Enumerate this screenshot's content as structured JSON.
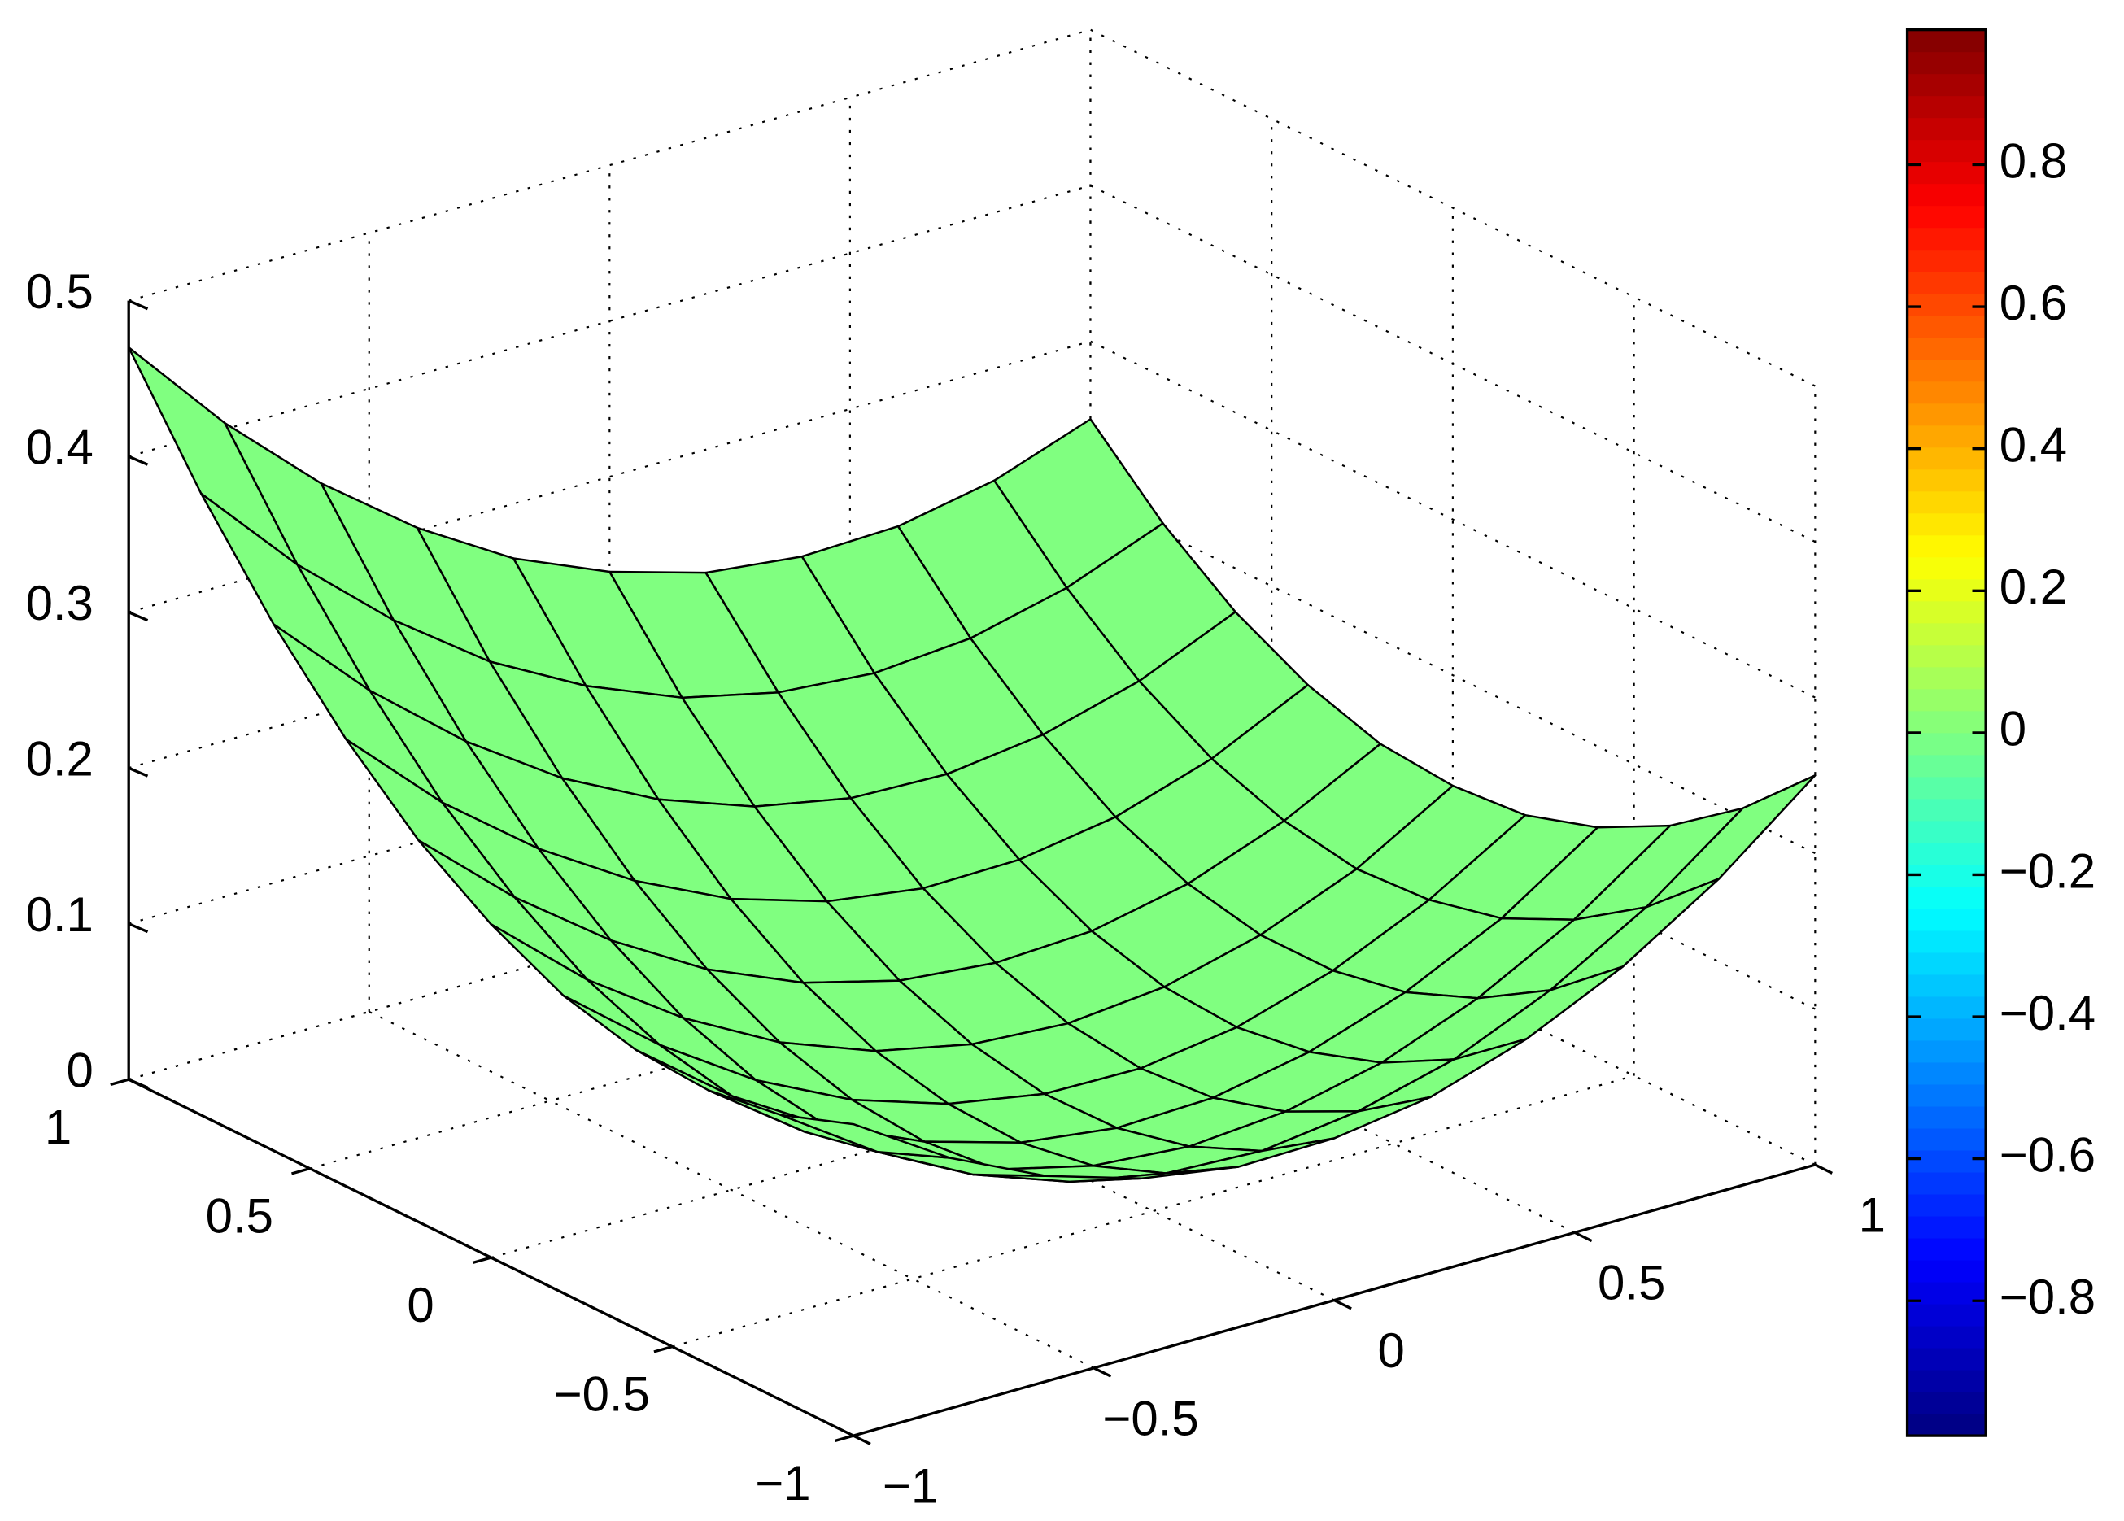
{
  "chart_data": {
    "type": "surface",
    "x": [
      -1,
      -0.8,
      -0.6,
      -0.4,
      -0.2,
      0,
      0.2,
      0.4,
      0.6,
      0.8,
      1
    ],
    "y": [
      -1,
      -0.8,
      -0.6,
      -0.4,
      -0.2,
      0,
      0.2,
      0.4,
      0.6,
      0.8,
      1
    ],
    "z": [
      [
        0.2,
        0.161,
        0.132,
        0.113,
        0.103,
        0.104,
        0.113,
        0.133,
        0.162,
        0.201,
        0.25
      ],
      [
        0.183,
        0.142,
        0.11,
        0.088,
        0.076,
        0.073,
        0.081,
        0.097,
        0.124,
        0.16,
        0.206
      ],
      [
        0.176,
        0.132,
        0.098,
        0.073,
        0.058,
        0.053,
        0.058,
        0.072,
        0.096,
        0.129,
        0.172
      ],
      [
        0.179,
        0.132,
        0.095,
        0.068,
        0.05,
        0.042,
        0.044,
        0.056,
        0.077,
        0.107,
        0.148
      ],
      [
        0.191,
        0.142,
        0.102,
        0.072,
        0.052,
        0.041,
        0.04,
        0.049,
        0.068,
        0.096,
        0.133
      ],
      [
        0.214,
        0.161,
        0.119,
        0.086,
        0.063,
        0.05,
        0.046,
        0.052,
        0.068,
        0.093,
        0.129
      ],
      [
        0.245,
        0.191,
        0.146,
        0.11,
        0.084,
        0.068,
        0.062,
        0.065,
        0.078,
        0.101,
        0.133
      ],
      [
        0.287,
        0.229,
        0.182,
        0.144,
        0.115,
        0.096,
        0.087,
        0.088,
        0.098,
        0.118,
        0.148
      ],
      [
        0.338,
        0.278,
        0.228,
        0.187,
        0.156,
        0.134,
        0.122,
        0.12,
        0.128,
        0.145,
        0.172
      ],
      [
        0.399,
        0.336,
        0.283,
        0.239,
        0.206,
        0.181,
        0.167,
        0.162,
        0.167,
        0.182,
        0.206
      ],
      [
        0.47,
        0.404,
        0.348,
        0.302,
        0.265,
        0.239,
        0.221,
        0.214,
        0.216,
        0.228,
        0.25
      ]
    ],
    "color": "#80ff80",
    "edge_color": "#000000",
    "xlim": [
      -1,
      1
    ],
    "ylim": [
      -1,
      1
    ],
    "zlim": [
      0,
      0.5
    ],
    "xticks": [
      {
        "value": -1,
        "label": "−1"
      },
      {
        "value": -0.5,
        "label": "−0.5"
      },
      0,
      0.5,
      1
    ],
    "yticks": [
      {
        "value": -1,
        "label": "−1"
      },
      {
        "value": -0.5,
        "label": "−0.5"
      },
      0,
      0.5,
      1
    ],
    "zticks": [
      0,
      0.1,
      0.2,
      0.3,
      0.4,
      0.5
    ],
    "grid": true,
    "colorbar": {
      "colormap": "jet",
      "clim": [
        -0.99,
        0.99
      ],
      "ticks": [
        {
          "value": -0.8,
          "label": "−0.8"
        },
        {
          "value": -0.6,
          "label": "−0.6"
        },
        {
          "value": -0.4,
          "label": "−0.4"
        },
        {
          "value": -0.2,
          "label": "−0.2"
        },
        0,
        0.2,
        0.4,
        0.6,
        0.8
      ]
    }
  }
}
